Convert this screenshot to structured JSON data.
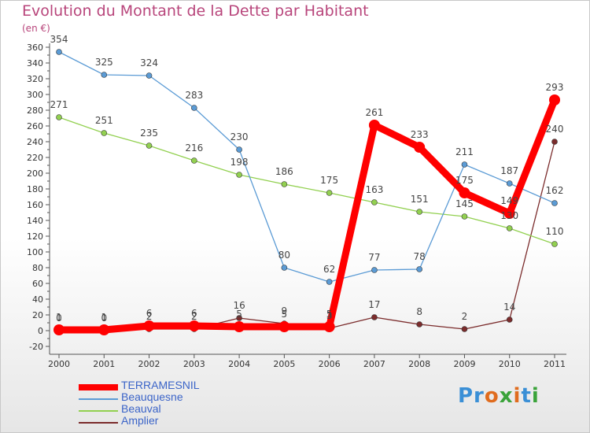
{
  "header": {
    "title": "Evolution du Montant de la Dette par Habitant",
    "unit": "(en €)"
  },
  "logo": {
    "text": "Proxiti"
  },
  "chart_data": {
    "type": "line",
    "title": "Evolution du Montant de la Dette par Habitant",
    "ylabel": "(en €)",
    "xlabel": "",
    "x": [
      "2000",
      "2001",
      "2002",
      "2003",
      "2004",
      "2005",
      "2006",
      "2007",
      "2008",
      "2009",
      "2010",
      "2011"
    ],
    "ylim": [
      -20,
      360
    ],
    "yticks": [
      -20,
      0,
      20,
      40,
      60,
      80,
      100,
      120,
      140,
      160,
      180,
      200,
      220,
      240,
      260,
      280,
      300,
      320,
      340,
      360
    ],
    "grid": false,
    "legend_position": "bottom-left",
    "series": [
      {
        "name": "TERRAMESNIL",
        "color": "#ff0000",
        "values": [
          1,
          1,
          6,
          6,
          5,
          5,
          5,
          261,
          233,
          175,
          149,
          293
        ]
      },
      {
        "name": "Beauquesne",
        "color": "#5b9bd5",
        "values": [
          354,
          325,
          324,
          283,
          230,
          80,
          62,
          77,
          78,
          211,
          187,
          162
        ]
      },
      {
        "name": "Beauval",
        "color": "#92d050",
        "values": [
          271,
          251,
          235,
          216,
          198,
          186,
          175,
          163,
          151,
          145,
          130,
          110
        ]
      },
      {
        "name": "Amplier",
        "color": "#7b2c2c",
        "values": [
          0,
          0,
          2,
          2,
          16,
          9,
          3,
          17,
          8,
          2,
          14,
          240
        ]
      }
    ]
  }
}
